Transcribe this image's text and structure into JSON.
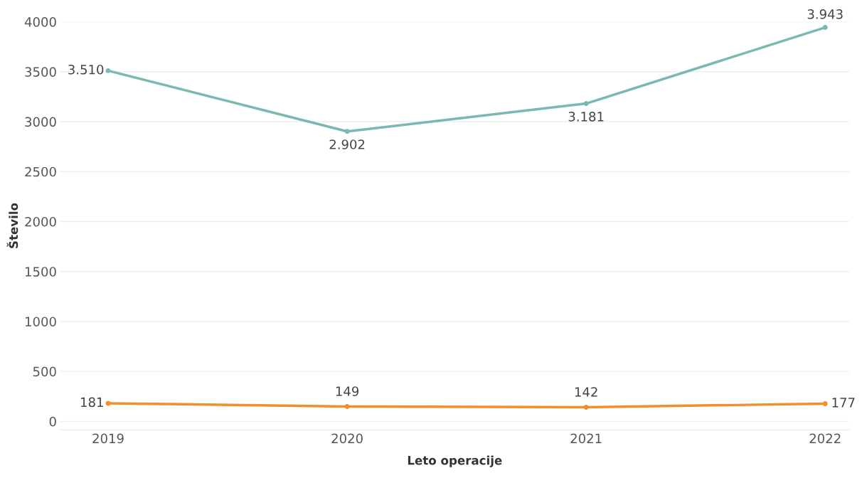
{
  "chart_data": {
    "type": "line",
    "xlabel": "Leto operacije",
    "ylabel": "Število",
    "categories": [
      "2019",
      "2020",
      "2021",
      "2022"
    ],
    "series": [
      {
        "color": "#7ab8b1",
        "values": [
          3510,
          2902,
          3181,
          3943
        ],
        "value_labels": [
          "3.510",
          "2.902",
          "3.181",
          "3.943"
        ]
      },
      {
        "color": "#f28e2b",
        "values": [
          181,
          149,
          142,
          177
        ],
        "value_labels": [
          "181",
          "149",
          "142",
          "177"
        ]
      }
    ],
    "ylim": [
      -85,
      4000
    ],
    "yticks": [
      0,
      500,
      1000,
      1500,
      2000,
      2500,
      3000,
      3500,
      4000
    ],
    "grid": "y",
    "marker": "circle",
    "line_style": "solid"
  }
}
